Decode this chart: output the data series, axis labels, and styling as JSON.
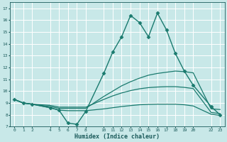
{
  "xlabel": "Humidex (Indice chaleur)",
  "bg_color": "#c8e8e8",
  "grid_color": "#ffffff",
  "line_color": "#1a7a6e",
  "tick_color": "#1a5a5a",
  "ylim": [
    7,
    17.5
  ],
  "yticks": [
    7,
    8,
    9,
    10,
    11,
    12,
    13,
    14,
    15,
    16,
    17
  ],
  "xticks": [
    0,
    1,
    2,
    4,
    5,
    6,
    7,
    8,
    10,
    11,
    12,
    13,
    14,
    15,
    16,
    17,
    18,
    19,
    20,
    22,
    23
  ],
  "xlim": [
    -0.5,
    23.5
  ],
  "lines": [
    {
      "x": [
        0,
        1,
        2,
        4,
        5,
        6,
        7,
        8,
        10,
        11,
        12,
        13,
        14,
        15,
        16,
        17,
        18,
        19,
        20,
        22,
        23
      ],
      "y": [
        9.3,
        9.0,
        8.9,
        8.6,
        8.4,
        7.3,
        7.2,
        8.3,
        11.5,
        13.3,
        14.6,
        16.4,
        15.8,
        14.6,
        16.6,
        15.2,
        13.2,
        11.7,
        10.5,
        8.7,
        8.0
      ],
      "marker": "D",
      "ms": 2.5,
      "lw": 1.0
    },
    {
      "x": [
        0,
        1,
        2,
        4,
        5,
        6,
        7,
        8,
        10,
        11,
        12,
        13,
        14,
        15,
        16,
        17,
        18,
        19,
        20,
        22,
        23
      ],
      "y": [
        9.3,
        9.0,
        8.9,
        8.7,
        8.55,
        8.55,
        8.55,
        8.55,
        9.55,
        10.0,
        10.45,
        10.8,
        11.1,
        11.35,
        11.5,
        11.6,
        11.7,
        11.65,
        11.55,
        8.5,
        8.45
      ],
      "marker": null,
      "ms": 0,
      "lw": 0.9
    },
    {
      "x": [
        0,
        1,
        2,
        4,
        5,
        6,
        7,
        8,
        10,
        11,
        12,
        13,
        14,
        15,
        16,
        17,
        18,
        19,
        20,
        22,
        23
      ],
      "y": [
        9.3,
        9.0,
        8.9,
        8.8,
        8.65,
        8.65,
        8.65,
        8.65,
        9.3,
        9.6,
        9.85,
        10.05,
        10.2,
        10.3,
        10.35,
        10.38,
        10.38,
        10.32,
        10.22,
        8.2,
        8.1
      ],
      "marker": null,
      "ms": 0,
      "lw": 0.9
    },
    {
      "x": [
        0,
        1,
        2,
        4,
        5,
        6,
        7,
        8,
        10,
        11,
        12,
        13,
        14,
        15,
        16,
        17,
        18,
        19,
        20,
        22,
        23
      ],
      "y": [
        9.3,
        9.0,
        8.9,
        8.6,
        8.4,
        8.35,
        8.35,
        8.35,
        8.5,
        8.6,
        8.7,
        8.78,
        8.85,
        8.88,
        8.9,
        8.9,
        8.9,
        8.85,
        8.75,
        8.05,
        7.95
      ],
      "marker": null,
      "ms": 0,
      "lw": 0.9
    }
  ]
}
